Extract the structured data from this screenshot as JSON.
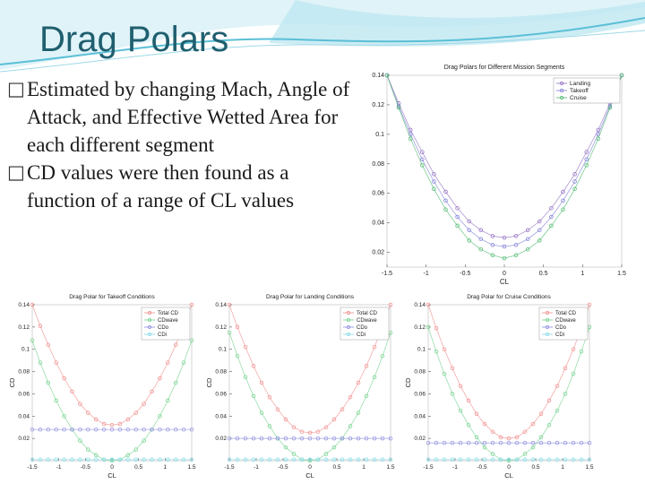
{
  "slide": {
    "title": "Drag Polars",
    "bullets": [
      {
        "marker": "□",
        "text": "Estimated by changing Mach, Angle of Attack, and Effective Wetted Area for each different segment"
      },
      {
        "marker": "□",
        "text": "CD values were then found as a function of a range of CL values"
      }
    ],
    "colors": {
      "title": "#1f5f6f",
      "accent_wave": "#5bbfd6"
    }
  },
  "chart_data": [
    {
      "type": "line",
      "title": "Drag Polars for Different Mission Segments",
      "xlabel": "CL",
      "ylabel": "",
      "xlim": [
        -1.5,
        1.5
      ],
      "ylim": [
        0.01,
        0.14
      ],
      "xticks": [
        "-1.5",
        "-1",
        "-0.5",
        "0",
        "0.5",
        "1",
        "1.5"
      ],
      "yticks": [
        "0.02",
        "0.04",
        "0.06",
        "0.08",
        "0.1",
        "0.12",
        "0.14"
      ],
      "legend_position": "top-right",
      "x": [
        -1.5,
        -1.35,
        -1.2,
        -1.05,
        -0.9,
        -0.75,
        -0.6,
        -0.45,
        -0.3,
        -0.15,
        0,
        0.15,
        0.3,
        0.45,
        0.6,
        0.75,
        0.9,
        1.05,
        1.2,
        1.35,
        1.5
      ],
      "series": [
        {
          "name": "Landing",
          "color": "#8e6bbf",
          "values": [
            0.14,
            0.121,
            0.103,
            0.088,
            0.073,
            0.061,
            0.05,
            0.041,
            0.035,
            0.031,
            0.03,
            0.031,
            0.035,
            0.041,
            0.05,
            0.061,
            0.073,
            0.088,
            0.103,
            0.121,
            0.14
          ]
        },
        {
          "name": "Takeoff",
          "color": "#7a7ad6",
          "values": [
            0.14,
            0.119,
            0.1,
            0.083,
            0.068,
            0.055,
            0.044,
            0.035,
            0.029,
            0.025,
            0.024,
            0.025,
            0.029,
            0.035,
            0.044,
            0.055,
            0.068,
            0.083,
            0.1,
            0.119,
            0.14
          ]
        },
        {
          "name": "Cruise",
          "color": "#49b86a",
          "values": [
            0.14,
            0.118,
            0.097,
            0.079,
            0.063,
            0.049,
            0.038,
            0.028,
            0.022,
            0.018,
            0.016,
            0.018,
            0.022,
            0.028,
            0.038,
            0.049,
            0.063,
            0.079,
            0.097,
            0.118,
            0.14
          ]
        }
      ]
    },
    {
      "type": "line",
      "title": "Drag Polar for Takeoff Conditions",
      "xlabel": "CL",
      "ylabel": "CD",
      "xlim": [
        -1.5,
        1.5
      ],
      "ylim": [
        0,
        0.14
      ],
      "xticks": [
        "-1.5",
        "-1",
        "-0.5",
        "0",
        "0.5",
        "1",
        "1.5"
      ],
      "yticks": [
        "0.02",
        "0.04",
        "0.06",
        "0.08",
        "0.1",
        "0.12",
        "0.14"
      ],
      "legend_position": "top-right",
      "x": [
        -1.5,
        -1.35,
        -1.2,
        -1.05,
        -0.9,
        -0.75,
        -0.6,
        -0.45,
        -0.3,
        -0.15,
        0,
        0.15,
        0.3,
        0.45,
        0.6,
        0.75,
        0.9,
        1.05,
        1.2,
        1.35,
        1.5
      ],
      "series": [
        {
          "name": "Total CD",
          "color": "#f08a8a",
          "values": [
            0.14,
            0.121,
            0.104,
            0.088,
            0.074,
            0.062,
            0.051,
            0.043,
            0.037,
            0.033,
            0.032,
            0.033,
            0.037,
            0.043,
            0.051,
            0.062,
            0.074,
            0.088,
            0.104,
            0.121,
            0.14
          ]
        },
        {
          "name": "CDwave",
          "color": "#6fd18a",
          "values": [
            0.108,
            0.088,
            0.07,
            0.054,
            0.04,
            0.028,
            0.018,
            0.01,
            0.005,
            0.001,
            0,
            0.001,
            0.005,
            0.01,
            0.018,
            0.028,
            0.04,
            0.054,
            0.07,
            0.088,
            0.108
          ]
        },
        {
          "name": "CDo",
          "color": "#8a8ae0",
          "values": [
            0.028,
            0.028,
            0.028,
            0.028,
            0.028,
            0.028,
            0.028,
            0.028,
            0.028,
            0.028,
            0.028,
            0.028,
            0.028,
            0.028,
            0.028,
            0.028,
            0.028,
            0.028,
            0.028,
            0.028,
            0.028
          ]
        },
        {
          "name": "CDi",
          "color": "#7fd8e8",
          "values": [
            0.001,
            0.001,
            0.001,
            0.001,
            0.001,
            0.001,
            0.001,
            0.001,
            0.001,
            0.001,
            0.001,
            0.001,
            0.001,
            0.001,
            0.001,
            0.001,
            0.001,
            0.001,
            0.001,
            0.001,
            0.001
          ]
        }
      ]
    },
    {
      "type": "line",
      "title": "Drag Polar for Landing Conditions",
      "xlabel": "CL",
      "ylabel": "CD",
      "xlim": [
        -1.5,
        1.5
      ],
      "ylim": [
        0,
        0.14
      ],
      "xticks": [
        "-1.5",
        "-1",
        "-0.5",
        "0",
        "0.5",
        "1",
        "1.5"
      ],
      "yticks": [
        "0.02",
        "0.04",
        "0.06",
        "0.08",
        "0.1",
        "0.12",
        "0.14"
      ],
      "legend_position": "top-right",
      "x": [
        -1.5,
        -1.35,
        -1.2,
        -1.05,
        -0.9,
        -0.75,
        -0.6,
        -0.45,
        -0.3,
        -0.15,
        0,
        0.15,
        0.3,
        0.45,
        0.6,
        0.75,
        0.9,
        1.05,
        1.2,
        1.35,
        1.5
      ],
      "series": [
        {
          "name": "Total CD",
          "color": "#f08a8a",
          "values": [
            0.14,
            0.12,
            0.102,
            0.085,
            0.07,
            0.057,
            0.046,
            0.037,
            0.03,
            0.026,
            0.025,
            0.026,
            0.03,
            0.037,
            0.046,
            0.057,
            0.07,
            0.085,
            0.102,
            0.12,
            0.14
          ]
        },
        {
          "name": "CDwave",
          "color": "#6fd18a",
          "values": [
            0.115,
            0.094,
            0.075,
            0.058,
            0.043,
            0.031,
            0.02,
            0.012,
            0.006,
            0.001,
            0,
            0.001,
            0.006,
            0.012,
            0.02,
            0.031,
            0.043,
            0.058,
            0.075,
            0.094,
            0.115
          ]
        },
        {
          "name": "CDo",
          "color": "#8a8ae0",
          "values": [
            0.02,
            0.02,
            0.02,
            0.02,
            0.02,
            0.02,
            0.02,
            0.02,
            0.02,
            0.02,
            0.02,
            0.02,
            0.02,
            0.02,
            0.02,
            0.02,
            0.02,
            0.02,
            0.02,
            0.02,
            0.02
          ]
        },
        {
          "name": "CDi",
          "color": "#7fd8e8",
          "values": [
            0.001,
            0.001,
            0.001,
            0.001,
            0.001,
            0.001,
            0.001,
            0.001,
            0.001,
            0.001,
            0.001,
            0.001,
            0.001,
            0.001,
            0.001,
            0.001,
            0.001,
            0.001,
            0.001,
            0.001,
            0.001
          ]
        }
      ]
    },
    {
      "type": "line",
      "title": "Drag Polar for Cruise Conditions",
      "xlabel": "CL",
      "ylabel": "CD",
      "xlim": [
        -1.5,
        1.5
      ],
      "ylim": [
        0,
        0.14
      ],
      "xticks": [
        "-1.5",
        "-1",
        "-0.5",
        "0",
        "0.5",
        "1",
        "1.5"
      ],
      "yticks": [
        "0.02",
        "0.04",
        "0.06",
        "0.08",
        "0.1",
        "0.12",
        "0.14"
      ],
      "legend_position": "top-right",
      "x": [
        -1.5,
        -1.35,
        -1.2,
        -1.05,
        -0.9,
        -0.75,
        -0.6,
        -0.45,
        -0.3,
        -0.15,
        0,
        0.15,
        0.3,
        0.45,
        0.6,
        0.75,
        0.9,
        1.05,
        1.2,
        1.35,
        1.5
      ],
      "series": [
        {
          "name": "Total CD",
          "color": "#f08a8a",
          "values": [
            0.14,
            0.119,
            0.1,
            0.083,
            0.067,
            0.054,
            0.042,
            0.033,
            0.026,
            0.021,
            0.02,
            0.021,
            0.026,
            0.033,
            0.042,
            0.054,
            0.067,
            0.083,
            0.1,
            0.119,
            0.14
          ]
        },
        {
          "name": "CDwave",
          "color": "#6fd18a",
          "values": [
            0.12,
            0.098,
            0.078,
            0.06,
            0.045,
            0.032,
            0.021,
            0.012,
            0.006,
            0.001,
            0,
            0.001,
            0.006,
            0.012,
            0.021,
            0.032,
            0.045,
            0.06,
            0.078,
            0.098,
            0.12
          ]
        },
        {
          "name": "CDo",
          "color": "#8a8ae0",
          "values": [
            0.016,
            0.016,
            0.016,
            0.016,
            0.016,
            0.016,
            0.016,
            0.016,
            0.016,
            0.016,
            0.016,
            0.016,
            0.016,
            0.016,
            0.016,
            0.016,
            0.016,
            0.016,
            0.016,
            0.016,
            0.016
          ]
        },
        {
          "name": "CDi",
          "color": "#7fd8e8",
          "values": [
            0.001,
            0.001,
            0.001,
            0.001,
            0.001,
            0.001,
            0.001,
            0.001,
            0.001,
            0.001,
            0.001,
            0.001,
            0.001,
            0.001,
            0.001,
            0.001,
            0.001,
            0.001,
            0.001,
            0.001,
            0.001
          ]
        }
      ]
    }
  ]
}
